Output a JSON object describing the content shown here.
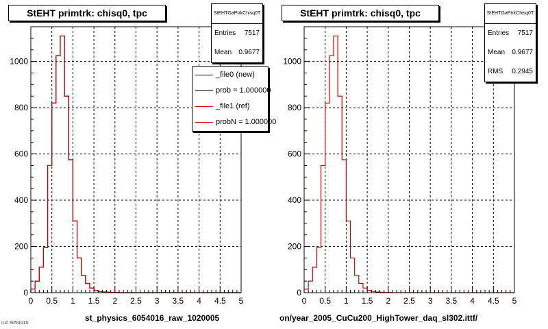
{
  "footer": {
    "note": "run 6054016"
  },
  "chart_data": [
    {
      "type": "histogram",
      "title": "StEHT primtrk: chisq0, tpc",
      "xlabel": "st_physics_6054016_raw_1020005",
      "xlim": [
        0,
        5
      ],
      "ylim": [
        0,
        1150
      ],
      "xticks": [
        "0",
        "0.5",
        "1",
        "1.5",
        "2",
        "2.5",
        "3",
        "3.5",
        "4",
        "4.5",
        "5"
      ],
      "yticks": [
        "0",
        "200",
        "400",
        "600",
        "800",
        "1000"
      ],
      "grid": true,
      "stats": {
        "name": "StEHTGaPtrkChisq0T",
        "entries_label": "Entries",
        "entries": "7517",
        "mean_label": "Mean",
        "mean": "0.9677"
      },
      "legend": {
        "position": "top-right",
        "entries": [
          {
            "label": "_file0 (new)",
            "color": "#000000"
          },
          {
            "label": "prob = 1.000000",
            "color": "#000000"
          },
          {
            "label": "_file1 (ref)",
            "color": "#cc0000"
          },
          {
            "label": "probN = 1.000000",
            "color": "#cc0000"
          }
        ]
      },
      "series": [
        {
          "name": "_file0 (new)",
          "color": "#000000",
          "bin_width": 0.1,
          "values": [
            15,
            50,
            110,
            195,
            550,
            820,
            1025,
            1110,
            850,
            575,
            310,
            150,
            75,
            40,
            20,
            10,
            5,
            3,
            2,
            1,
            1,
            0,
            0,
            0,
            0,
            0,
            0,
            0,
            0,
            0,
            0,
            0,
            0,
            0,
            0,
            0,
            0,
            0,
            0,
            0,
            0,
            0,
            0,
            0,
            0,
            0,
            0,
            0,
            0,
            0
          ]
        },
        {
          "name": "_file1 (ref)",
          "color": "#cc0000",
          "bin_width": 0.1,
          "values": [
            15,
            50,
            110,
            195,
            550,
            820,
            1025,
            1110,
            850,
            575,
            310,
            150,
            75,
            40,
            20,
            10,
            5,
            3,
            2,
            1,
            1,
            0,
            0,
            0,
            0,
            0,
            0,
            0,
            0,
            0,
            0,
            0,
            0,
            0,
            0,
            0,
            0,
            0,
            0,
            0,
            0,
            0,
            0,
            0,
            0,
            0,
            0,
            0,
            0,
            0
          ]
        }
      ]
    },
    {
      "type": "histogram",
      "title": "StEHT primtrk: chisq0, tpc",
      "xlabel": "on/year_2005_CuCu200_HighTower_daq_sl302.ittf/",
      "xlim": [
        0,
        5
      ],
      "ylim": [
        0,
        1150
      ],
      "xticks": [
        "0",
        "0.5",
        "1",
        "1.5",
        "2",
        "2.5",
        "3",
        "3.5",
        "4",
        "4.5",
        "5"
      ],
      "yticks": [
        "0",
        "200",
        "400",
        "600",
        "800",
        "1000"
      ],
      "grid": true,
      "stats": {
        "name": "StEHTGaPtrkChisq0T",
        "entries_label": "Entries",
        "entries": "7517",
        "mean_label": "Mean",
        "mean": "0.9677",
        "rms_label": "RMS",
        "rms": "0.2945"
      },
      "series": [
        {
          "name": "_file1 (ref)",
          "color": "#cc0000",
          "bin_width": 0.1,
          "values": [
            15,
            50,
            110,
            195,
            550,
            820,
            1025,
            1110,
            850,
            575,
            310,
            150,
            75,
            40,
            20,
            10,
            5,
            3,
            2,
            1,
            1,
            0,
            0,
            0,
            0,
            0,
            0,
            0,
            0,
            0,
            0,
            0,
            0,
            0,
            0,
            0,
            0,
            0,
            0,
            0,
            0,
            0,
            0,
            0,
            0,
            0,
            0,
            0,
            0,
            0
          ]
        }
      ]
    }
  ]
}
